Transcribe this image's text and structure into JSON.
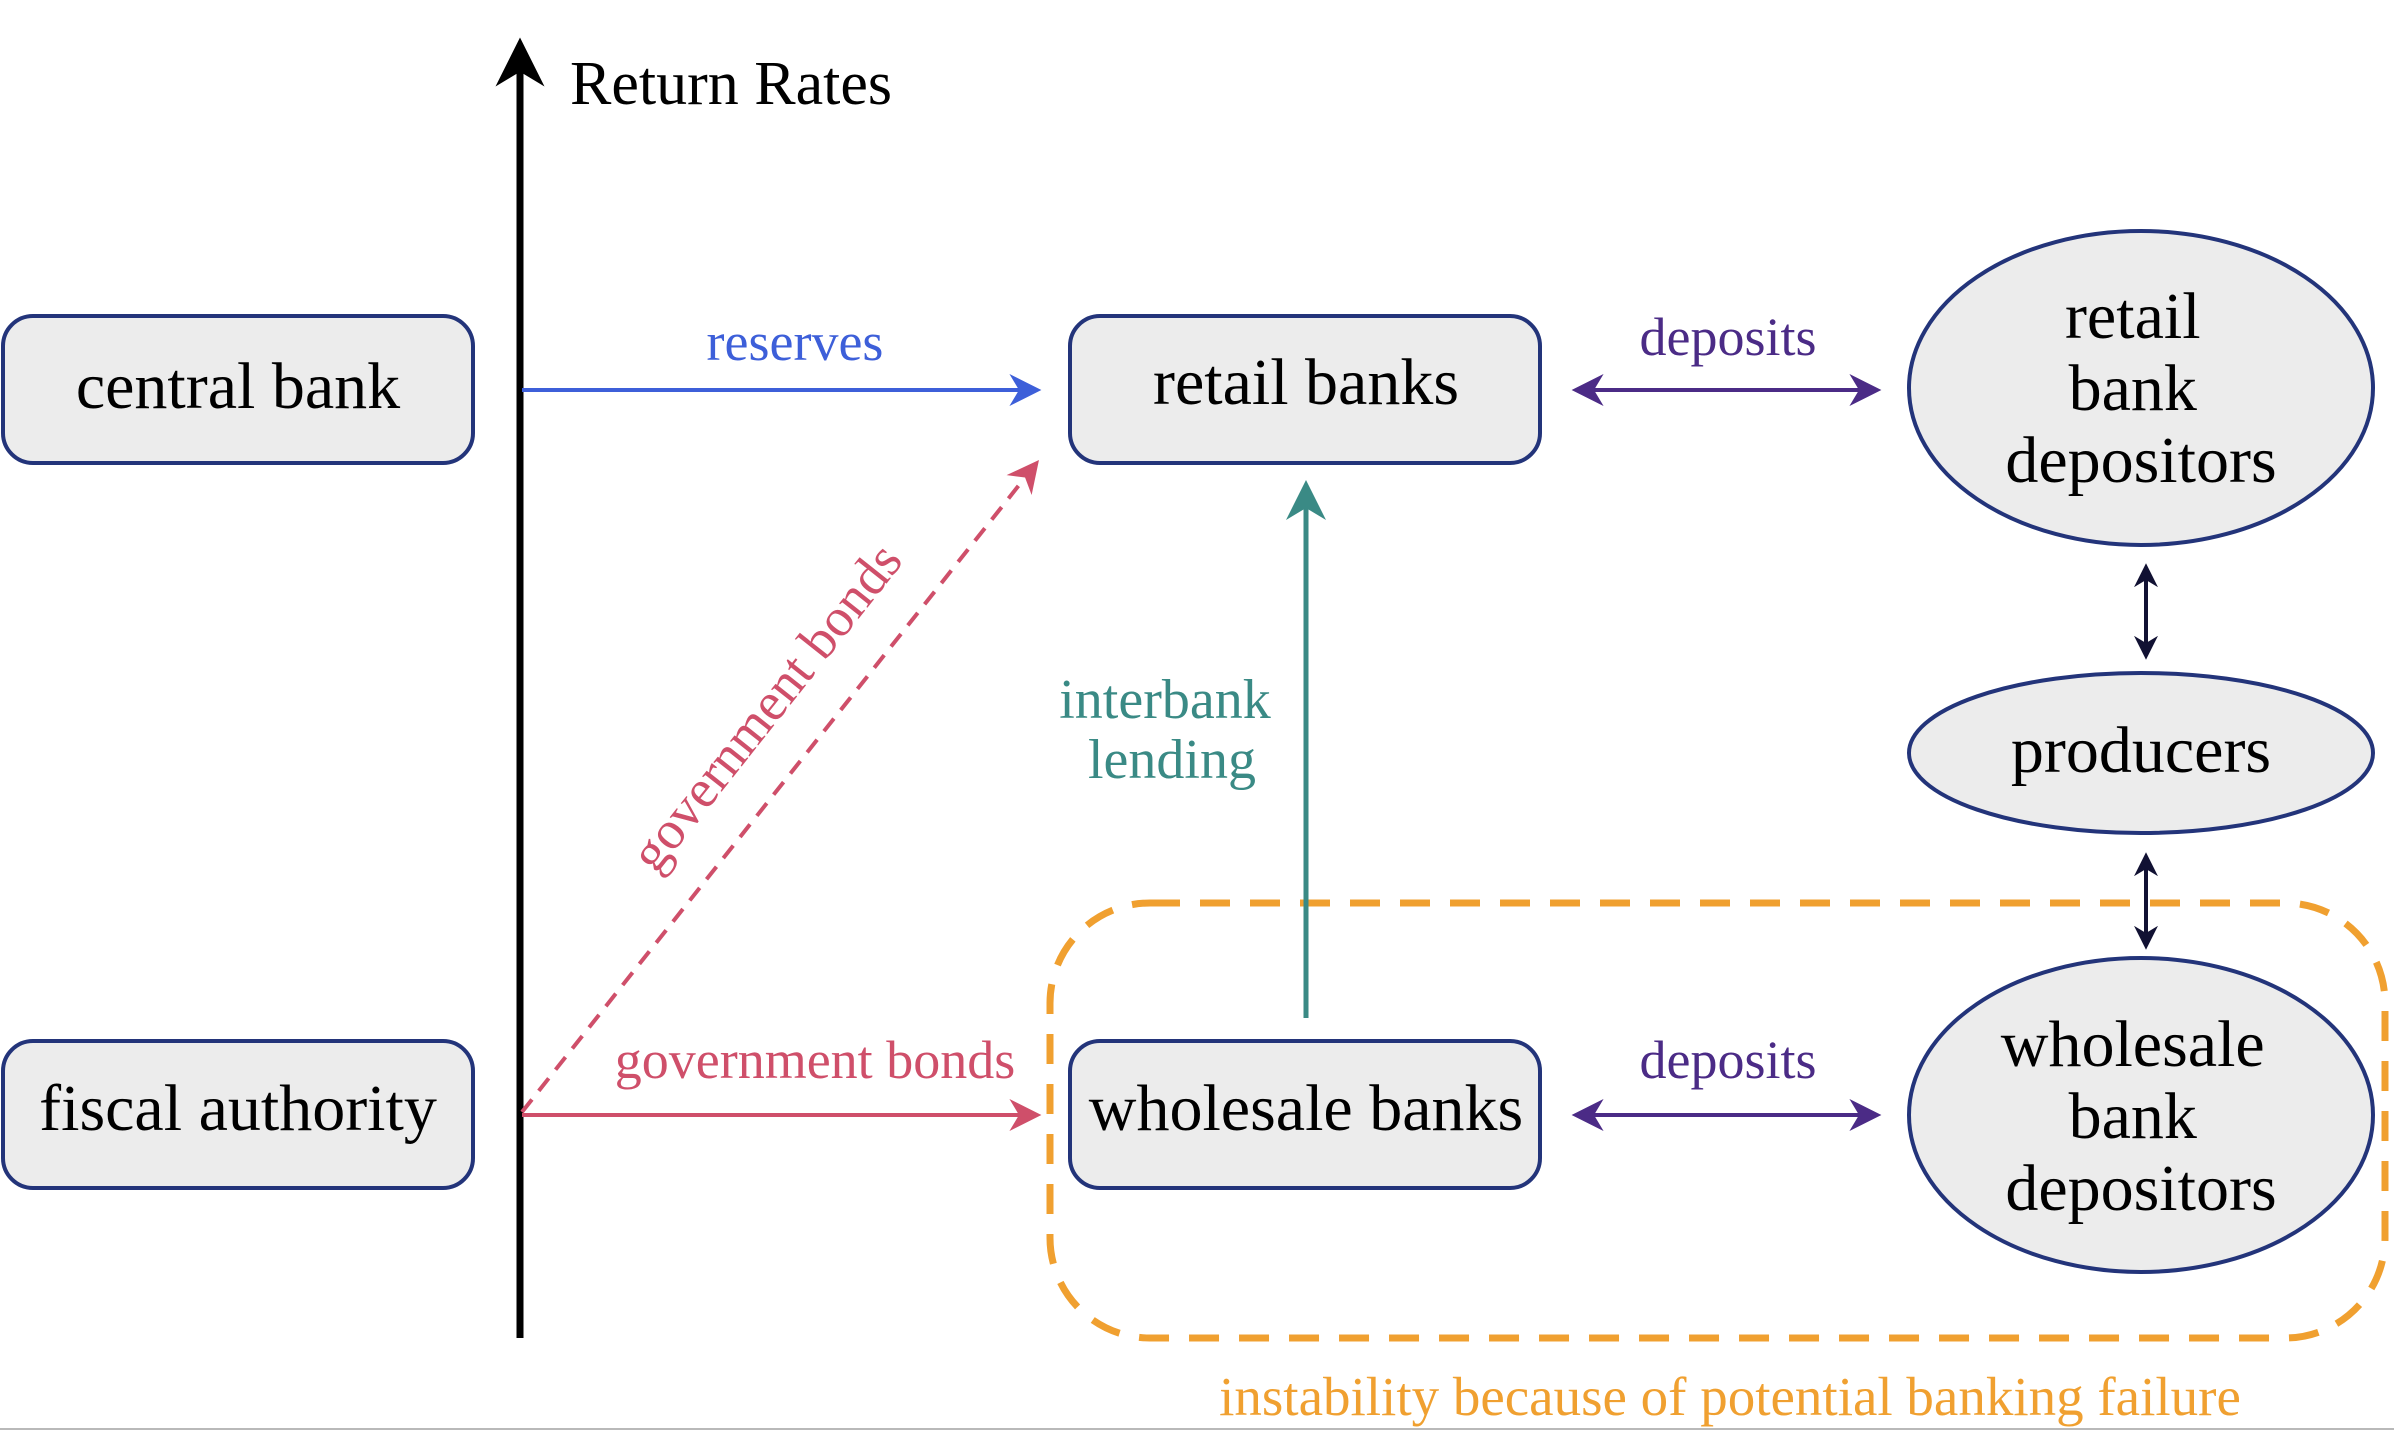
{
  "axis": {
    "label": "Return Rates"
  },
  "nodes": {
    "central_bank": "central bank",
    "fiscal_authority": "fiscal authority",
    "retail_banks": "retail banks",
    "wholesale_banks": "wholesale banks",
    "retail_depositors": [
      "retail",
      "bank",
      "depositors"
    ],
    "producers": "producers",
    "wholesale_depositors": [
      "wholesale",
      "bank",
      "depositors"
    ]
  },
  "flows": {
    "reserves": "reserves",
    "government_bonds_diagonal": "government bonds",
    "government_bonds_horizontal": "government bonds",
    "interbank_lending": [
      "interbank",
      "lending"
    ],
    "deposits_retail": "deposits",
    "deposits_wholesale": "deposits"
  },
  "instability_note": "instability because of potential banking failure",
  "colors": {
    "axis": "#000000",
    "node_border": "#23347a",
    "node_fill": "#ececec",
    "reserves": "#3d5fd9",
    "bonds": "#cf4f6a",
    "interbank": "#3a8a85",
    "deposits": "#4b2b86",
    "link": "#111133",
    "instability": "#f0a030"
  }
}
